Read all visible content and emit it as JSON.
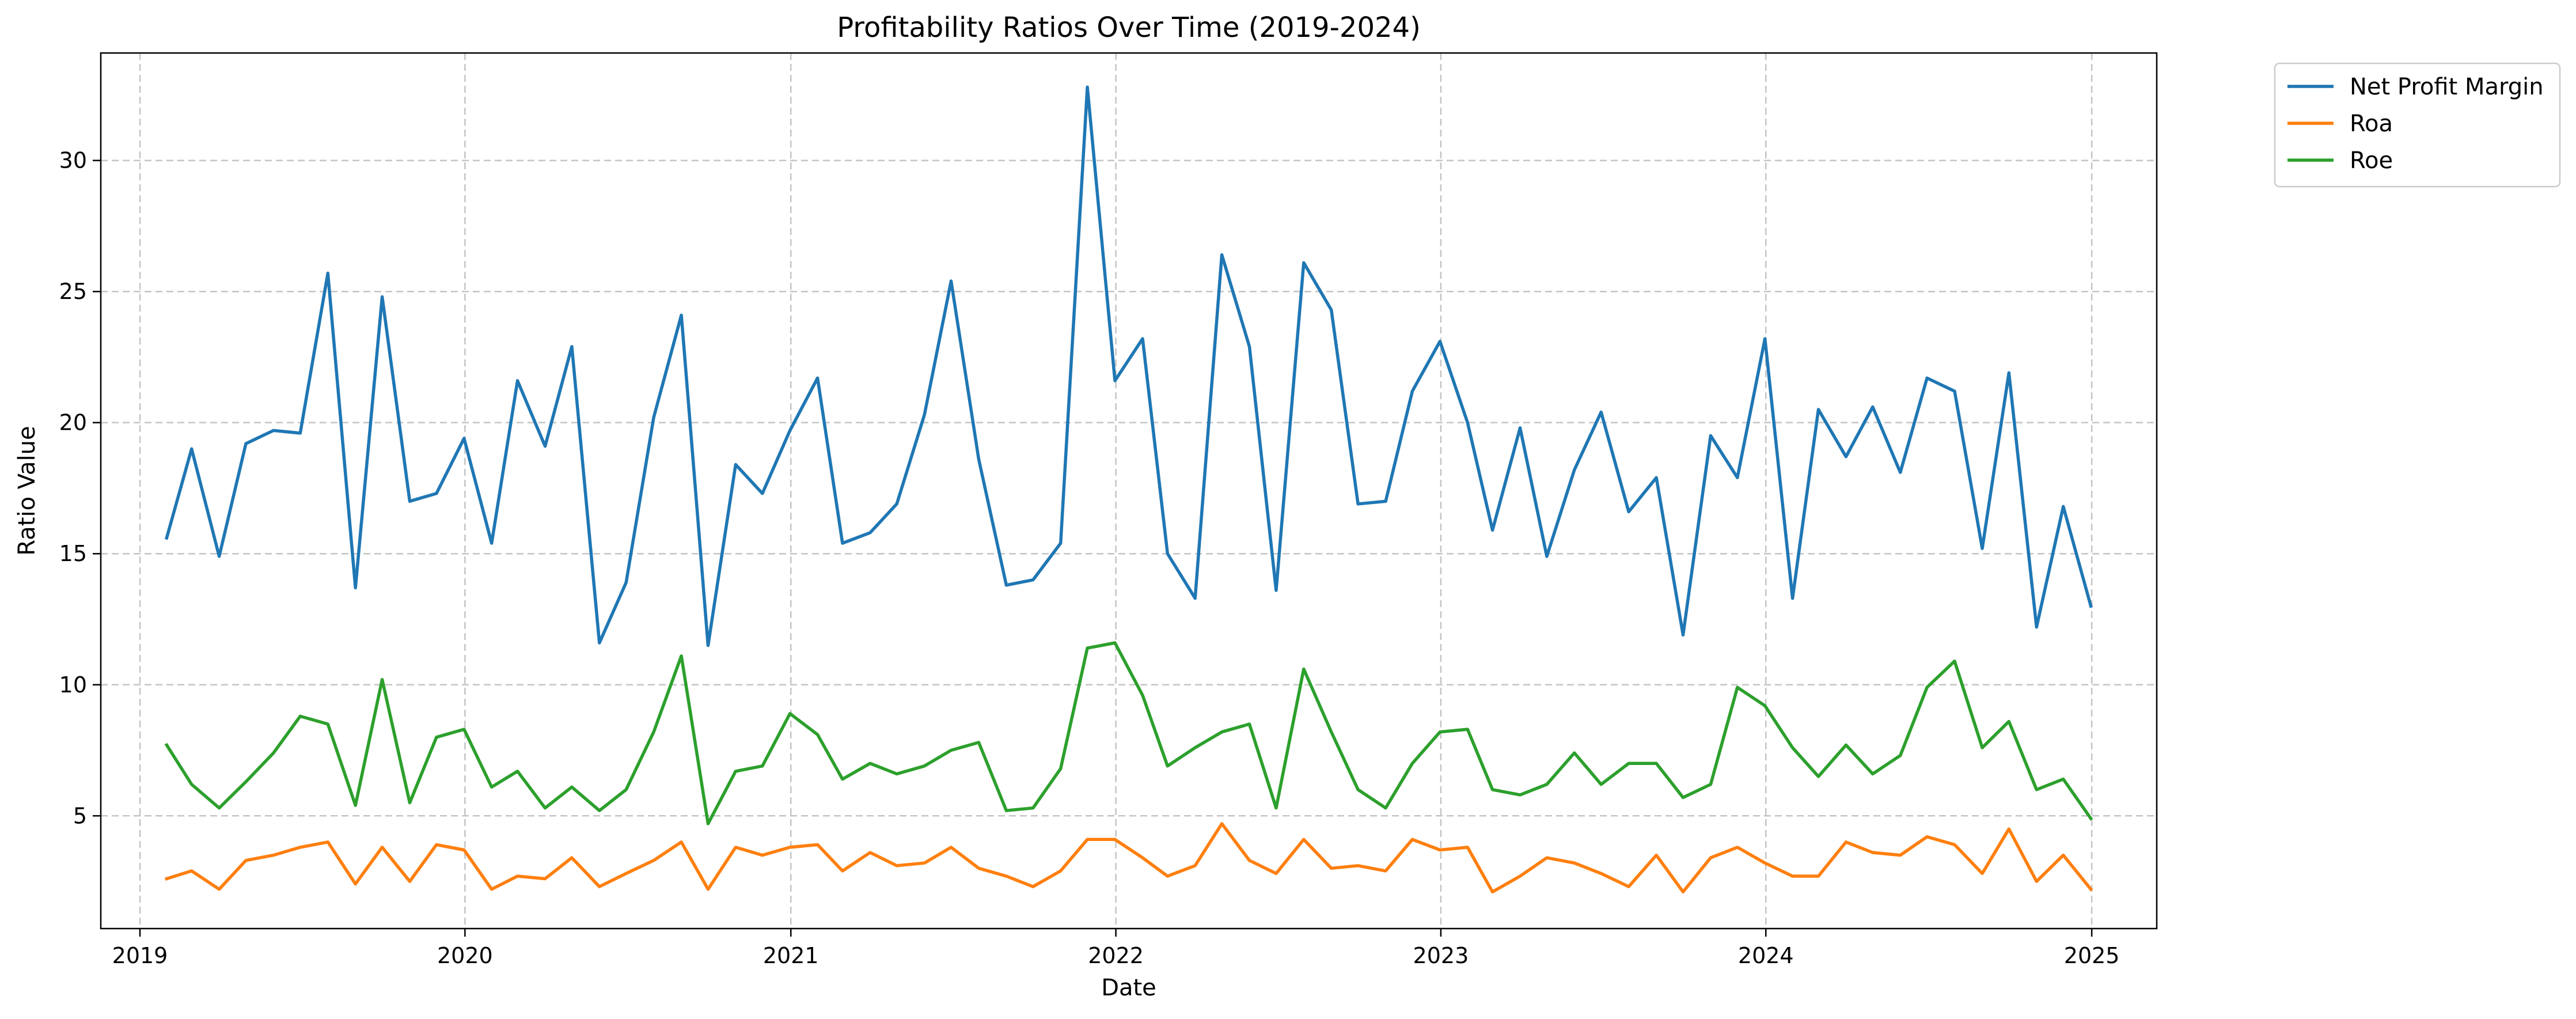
{
  "chart_data": {
    "type": "line",
    "title": "Profitability Ratios Over Time (2019-2024)",
    "xlabel": "Date",
    "ylabel": "Ratio Value",
    "x_axis_kind": "date",
    "x_ticks": [
      "2019",
      "2020",
      "2021",
      "2022",
      "2023",
      "2024",
      "2025"
    ],
    "y_ticks": [
      "5",
      "10",
      "15",
      "20",
      "25",
      "30"
    ],
    "xlim": [
      "2018-11-18",
      "2025-03-15"
    ],
    "ylim": [
      0.7,
      34.1
    ],
    "grid": true,
    "grid_style": "dashed",
    "legend_position": "outside-top-right",
    "x": [
      "2019-01-31",
      "2019-02-28",
      "2019-03-31",
      "2019-04-30",
      "2019-05-31",
      "2019-06-30",
      "2019-07-31",
      "2019-08-31",
      "2019-09-30",
      "2019-10-31",
      "2019-11-30",
      "2019-12-31",
      "2020-01-31",
      "2020-02-29",
      "2020-03-31",
      "2020-04-30",
      "2020-05-31",
      "2020-06-30",
      "2020-07-31",
      "2020-08-31",
      "2020-09-30",
      "2020-10-31",
      "2020-11-30",
      "2020-12-31",
      "2021-01-31",
      "2021-02-28",
      "2021-03-31",
      "2021-04-30",
      "2021-05-31",
      "2021-06-30",
      "2021-07-31",
      "2021-08-31",
      "2021-09-30",
      "2021-10-31",
      "2021-11-30",
      "2021-12-31",
      "2022-01-31",
      "2022-02-28",
      "2022-03-31",
      "2022-04-30",
      "2022-05-31",
      "2022-06-30",
      "2022-07-31",
      "2022-08-31",
      "2022-09-30",
      "2022-10-31",
      "2022-11-30",
      "2022-12-31",
      "2023-01-31",
      "2023-02-28",
      "2023-03-31",
      "2023-04-30",
      "2023-05-31",
      "2023-06-30",
      "2023-07-31",
      "2023-08-31",
      "2023-09-30",
      "2023-10-31",
      "2023-11-30",
      "2023-12-31",
      "2024-01-31",
      "2024-02-29",
      "2024-03-31",
      "2024-04-30",
      "2024-05-31",
      "2024-06-30",
      "2024-07-31",
      "2024-08-31",
      "2024-09-30",
      "2024-10-31",
      "2024-11-30",
      "2024-12-31"
    ],
    "series": [
      {
        "name": "Net Profit Margin",
        "color": "#1f77b4",
        "values": [
          15.6,
          19.0,
          14.9,
          19.2,
          19.7,
          19.6,
          25.7,
          13.7,
          24.8,
          17.0,
          17.3,
          19.4,
          15.4,
          21.6,
          19.1,
          22.9,
          11.6,
          13.9,
          20.2,
          24.1,
          11.5,
          18.4,
          17.3,
          19.7,
          21.7,
          15.4,
          15.8,
          16.9,
          20.3,
          25.4,
          18.6,
          13.8,
          14.0,
          15.4,
          32.8,
          21.6,
          23.2,
          15.0,
          13.3,
          26.4,
          22.9,
          13.6,
          26.1,
          24.3,
          16.9,
          17.0,
          21.2,
          23.1,
          20.0,
          15.9,
          19.8,
          14.9,
          18.2,
          20.4,
          16.6,
          17.9,
          11.9,
          19.5,
          17.9,
          23.2,
          13.3,
          20.5,
          18.7,
          20.6,
          18.1,
          21.7,
          21.2,
          15.2,
          21.9,
          12.2,
          16.8,
          13.0
        ]
      },
      {
        "name": "Roa",
        "color": "#ff7f0e",
        "values": [
          2.6,
          2.9,
          2.2,
          3.3,
          3.5,
          3.8,
          4.0,
          2.4,
          3.8,
          2.5,
          3.9,
          3.7,
          2.2,
          2.7,
          2.6,
          3.4,
          2.3,
          2.8,
          3.3,
          4.0,
          2.2,
          3.8,
          3.5,
          3.8,
          3.9,
          2.9,
          3.6,
          3.1,
          3.2,
          3.8,
          3.0,
          2.7,
          2.3,
          2.9,
          4.1,
          4.1,
          3.4,
          2.7,
          3.1,
          4.7,
          3.3,
          2.8,
          4.1,
          3.0,
          3.1,
          2.9,
          4.1,
          3.7,
          3.8,
          2.1,
          2.7,
          3.4,
          3.2,
          2.8,
          2.3,
          3.5,
          2.1,
          3.4,
          3.8,
          3.2,
          2.7,
          2.7,
          4.0,
          3.6,
          3.5,
          4.2,
          3.9,
          2.8,
          4.5,
          2.5,
          3.5,
          2.2
        ]
      },
      {
        "name": "Roe",
        "color": "#2ca02c",
        "values": [
          7.7,
          6.2,
          5.3,
          6.3,
          7.4,
          8.8,
          8.5,
          5.4,
          10.2,
          5.5,
          8.0,
          8.3,
          6.1,
          6.7,
          5.3,
          6.1,
          5.2,
          6.0,
          8.2,
          11.1,
          4.7,
          6.7,
          6.9,
          8.9,
          8.1,
          6.4,
          7.0,
          6.6,
          6.9,
          7.5,
          7.8,
          5.2,
          5.3,
          6.8,
          11.4,
          11.6,
          9.6,
          6.9,
          7.6,
          8.2,
          8.5,
          5.3,
          10.6,
          8.2,
          6.0,
          5.3,
          7.0,
          8.2,
          8.3,
          6.0,
          5.8,
          6.2,
          7.4,
          6.2,
          7.0,
          7.0,
          5.7,
          6.2,
          9.9,
          9.2,
          7.6,
          6.5,
          7.7,
          6.6,
          7.3,
          9.9,
          10.9,
          7.6,
          8.6,
          6.0,
          6.4,
          4.9
        ]
      }
    ]
  }
}
